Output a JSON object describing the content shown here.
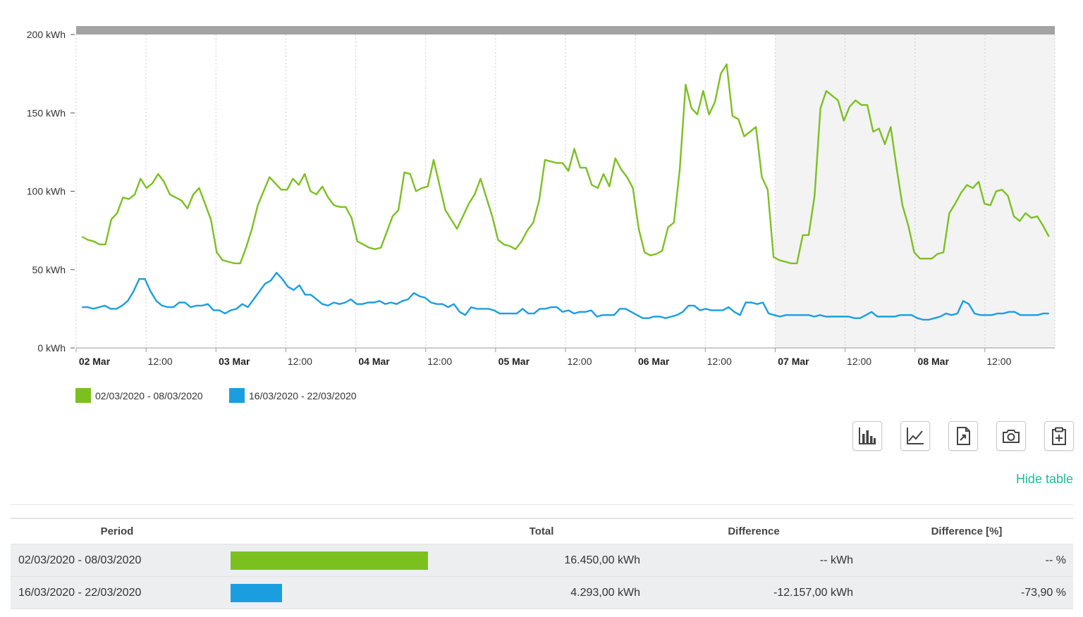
{
  "chart_data": {
    "type": "line",
    "x_tick_labels": [
      {
        "label": "02 Mar",
        "bold": true
      },
      {
        "label": "12:00",
        "bold": false
      },
      {
        "label": "03 Mar",
        "bold": true
      },
      {
        "label": "12:00",
        "bold": false
      },
      {
        "label": "04 Mar",
        "bold": true
      },
      {
        "label": "12:00",
        "bold": false
      },
      {
        "label": "05 Mar",
        "bold": true
      },
      {
        "label": "12:00",
        "bold": false
      },
      {
        "label": "06 Mar",
        "bold": true
      },
      {
        "label": "12:00",
        "bold": false
      },
      {
        "label": "07 Mar",
        "bold": true
      },
      {
        "label": "12:00",
        "bold": false
      },
      {
        "label": "08 Mar",
        "bold": true
      },
      {
        "label": "12:00",
        "bold": false
      }
    ],
    "x_range_hours": [
      0,
      168
    ],
    "y_ticks": [
      "0 kWh",
      "50 kWh",
      "100 kWh",
      "150 kWh",
      "200 kWh"
    ],
    "ylim": [
      0,
      200
    ],
    "grid": "vertical dashed",
    "weekend_shading_start_hour": 120,
    "legend_position": "bottom-left",
    "series": [
      {
        "name": "02/03/2020 - 08/03/2020",
        "color": "#7cc020",
        "values": [
          71,
          69,
          68,
          66,
          66,
          82,
          86,
          96,
          95,
          98,
          108,
          102,
          105,
          111,
          106,
          98,
          96,
          94,
          89,
          98,
          102,
          92,
          82,
          61,
          56,
          55,
          54,
          54,
          64,
          76,
          91,
          100,
          109,
          105,
          101,
          101,
          108,
          104,
          111,
          100,
          98,
          103,
          96,
          91,
          90,
          90,
          83,
          68,
          66,
          64,
          63,
          64,
          74,
          84,
          88,
          112,
          111,
          100,
          102,
          103,
          120,
          104,
          88,
          82,
          76,
          84,
          92,
          98,
          108,
          96,
          84,
          69,
          66,
          65,
          63,
          68,
          75,
          80,
          94,
          120,
          119,
          118,
          118,
          113,
          127,
          115,
          115,
          104,
          102,
          111,
          103,
          121,
          114,
          109,
          102,
          76,
          61,
          59,
          60,
          62,
          77,
          80,
          114,
          168,
          153,
          149,
          164,
          149,
          157,
          175,
          181,
          148,
          146,
          135,
          138,
          141,
          109,
          101,
          58,
          56,
          55,
          54,
          54,
          72,
          72,
          97,
          153,
          164,
          161,
          158,
          145,
          154,
          158,
          155,
          155,
          138,
          140,
          130,
          141,
          115,
          91,
          78,
          61,
          57,
          57,
          57,
          60,
          61,
          86,
          92,
          99,
          104,
          102,
          106,
          92,
          91,
          100,
          101,
          97,
          84,
          81,
          86,
          83,
          84,
          78,
          71
        ]
      },
      {
        "name": "16/03/2020 - 22/03/2020",
        "color": "#1a9ee0",
        "values": [
          26,
          26,
          25,
          26,
          27,
          25,
          25,
          27,
          30,
          36,
          44,
          44,
          36,
          30,
          27,
          26,
          26,
          29,
          29,
          26,
          27,
          27,
          28,
          24,
          24,
          22,
          24,
          25,
          28,
          26,
          31,
          36,
          41,
          43,
          48,
          44,
          39,
          37,
          40,
          34,
          34,
          31,
          28,
          27,
          29,
          28,
          29,
          31,
          28,
          28,
          29,
          29,
          30,
          28,
          29,
          28,
          30,
          31,
          35,
          33,
          32,
          29,
          28,
          28,
          26,
          28,
          23,
          21,
          26,
          25,
          25,
          25,
          24,
          22,
          22,
          22,
          22,
          25,
          22,
          22,
          25,
          25,
          26,
          26,
          23,
          24,
          22,
          23,
          23,
          24,
          20,
          21,
          21,
          21,
          25,
          25,
          23,
          21,
          19,
          19,
          20,
          20,
          19,
          20,
          21,
          23,
          27,
          27,
          24,
          25,
          24,
          24,
          24,
          26,
          23,
          21,
          29,
          29,
          28,
          29,
          22,
          21,
          20,
          21,
          21,
          21,
          21,
          21,
          20,
          21,
          20,
          20,
          20,
          20,
          20,
          19,
          19,
          21,
          23,
          20,
          20,
          20,
          20,
          21,
          21,
          21,
          19,
          18,
          18,
          19,
          20,
          22,
          21,
          22,
          30,
          28,
          22,
          21,
          21,
          21,
          22,
          22,
          23,
          23,
          21,
          21,
          21,
          21,
          22,
          22
        ]
      }
    ]
  },
  "toolbar": {
    "icons": [
      "bar-chart-icon",
      "line-chart-icon",
      "export-document-icon",
      "camera-icon",
      "clipboard-add-icon"
    ]
  },
  "links": {
    "hide_table": "Hide table"
  },
  "table": {
    "headers": {
      "period": "Period",
      "total": "Total",
      "difference": "Difference",
      "difference_pct": "Difference [%]"
    },
    "rows": [
      {
        "period": "02/03/2020 - 08/03/2020",
        "bar_value": 16450,
        "bar_color": "#7cc020",
        "total": "16.450,00 kWh",
        "difference": "-- kWh",
        "difference_pct": "-- %"
      },
      {
        "period": "16/03/2020 - 22/03/2020",
        "bar_value": 4293,
        "bar_color": "#1a9ee0",
        "total": "4.293,00 kWh",
        "difference": "-12.157,00 kWh",
        "difference_pct": "-73,90 %"
      }
    ]
  }
}
